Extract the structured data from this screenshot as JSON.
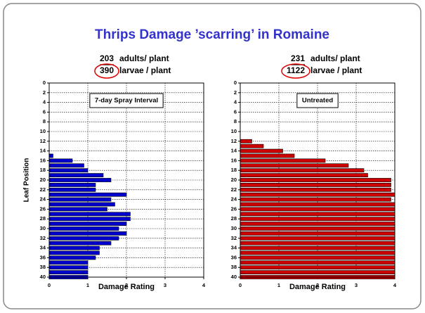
{
  "title": "Thrips Damage ’scarring’ in Romaine",
  "chart_data": [
    {
      "type": "bar",
      "orientation": "horizontal",
      "label": "7-day Spray Interval",
      "adults": 203,
      "adults_label": "adults/ plant",
      "larvae": 390,
      "larvae_label": "larvae / plant",
      "xlabel": "Damage Rating",
      "ylabel": "Leaf Position",
      "xlim": [
        0,
        4
      ],
      "xticks": [
        0,
        1,
        2,
        3,
        4
      ],
      "ylim": [
        0,
        40
      ],
      "yticks": [
        0,
        2,
        4,
        6,
        8,
        10,
        12,
        14,
        16,
        18,
        20,
        22,
        24,
        26,
        28,
        30,
        32,
        34,
        36,
        38,
        40
      ],
      "inverted_y": true,
      "grid": true,
      "color": "#0000cc",
      "x": [
        15,
        16,
        17,
        18,
        19,
        20,
        21,
        22,
        23,
        24,
        25,
        26,
        27,
        28,
        29,
        30,
        31,
        32,
        33,
        34,
        35,
        36,
        37,
        38,
        39,
        40
      ],
      "values": [
        0.1,
        0.6,
        0.9,
        1.0,
        1.4,
        1.6,
        1.2,
        1.2,
        2.0,
        1.6,
        1.7,
        1.5,
        2.1,
        2.1,
        2.0,
        1.8,
        2.0,
        1.8,
        1.6,
        1.3,
        1.3,
        1.2,
        1.0,
        1.0,
        1.0,
        1.0
      ]
    },
    {
      "type": "bar",
      "orientation": "horizontal",
      "label": "Untreated",
      "adults": 231,
      "adults_label": "adults/ plant",
      "larvae": 1122,
      "larvae_label": "larvae / plant",
      "xlabel": "Damage Rating",
      "xlim": [
        0,
        4
      ],
      "xticks": [
        0,
        1,
        2,
        3,
        4
      ],
      "ylim": [
        0,
        40
      ],
      "yticks": [
        0,
        2,
        4,
        6,
        8,
        10,
        12,
        14,
        16,
        18,
        20,
        22,
        24,
        26,
        28,
        30,
        32,
        34,
        36,
        38,
        40
      ],
      "inverted_y": true,
      "grid": true,
      "color": "#cc0000",
      "x": [
        12,
        13,
        14,
        15,
        16,
        17,
        18,
        19,
        20,
        21,
        22,
        23,
        24,
        25,
        26,
        27,
        28,
        29,
        30,
        31,
        32,
        33,
        34,
        35,
        36,
        37,
        38,
        39,
        40
      ],
      "values": [
        0.3,
        0.6,
        1.1,
        1.4,
        2.2,
        2.8,
        3.2,
        3.3,
        3.9,
        3.9,
        3.9,
        4.0,
        3.9,
        4,
        4,
        4,
        4,
        4,
        4,
        4,
        4,
        4,
        4,
        4,
        4,
        4,
        4,
        4,
        4
      ]
    }
  ]
}
